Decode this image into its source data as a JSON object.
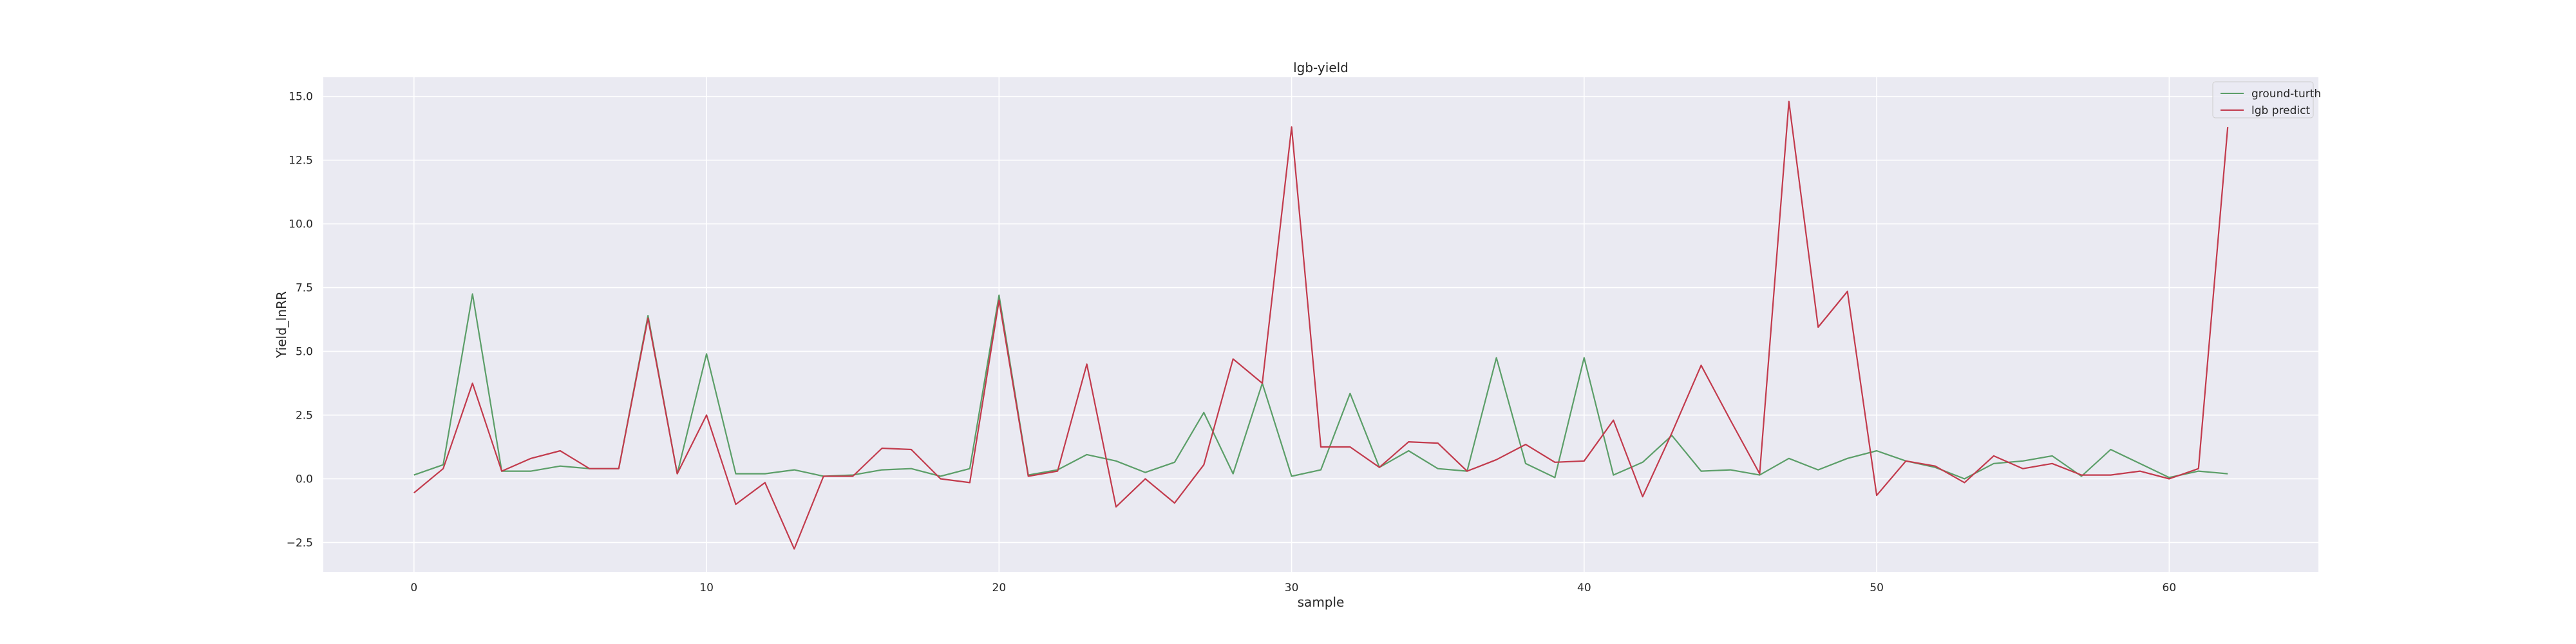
{
  "chart_data": {
    "type": "line",
    "title": "lgb-yield",
    "xlabel": "sample",
    "ylabel": "Yield_lnRR",
    "xlim": [
      -3.1,
      65.1
    ],
    "ylim": [
      -3.65,
      15.75
    ],
    "x_ticks": [
      0,
      10,
      20,
      30,
      40,
      50,
      60
    ],
    "x_tick_labels": [
      "0",
      "10",
      "20",
      "30",
      "40",
      "50",
      "60"
    ],
    "y_ticks": [
      -2.5,
      0,
      2.5,
      5,
      7.5,
      10,
      12.5,
      15
    ],
    "y_tick_labels": [
      "−2.5",
      "0.0",
      "2.5",
      "5.0",
      "7.5",
      "10.0",
      "12.5",
      "15.0"
    ],
    "grid": true,
    "legend_position": "top-right",
    "x": [
      0,
      1,
      2,
      3,
      4,
      5,
      6,
      7,
      8,
      9,
      10,
      11,
      12,
      13,
      14,
      15,
      16,
      17,
      18,
      19,
      20,
      21,
      22,
      23,
      24,
      25,
      26,
      27,
      28,
      29,
      30,
      31,
      32,
      33,
      34,
      35,
      36,
      37,
      38,
      39,
      40,
      41,
      42,
      43,
      44,
      45,
      46,
      47,
      48,
      49,
      50,
      51,
      52,
      53,
      54,
      55,
      56,
      57,
      58,
      59,
      60,
      61,
      62
    ],
    "series": [
      {
        "name": "ground-turth",
        "color": "#5b9e68",
        "values": [
          0.15,
          0.55,
          7.25,
          0.3,
          0.3,
          0.5,
          0.4,
          0.4,
          6.4,
          0.2,
          4.9,
          0.2,
          0.2,
          0.35,
          0.1,
          0.15,
          0.35,
          0.4,
          0.1,
          0.4,
          7.2,
          0.15,
          0.35,
          0.95,
          0.7,
          0.25,
          0.65,
          2.6,
          0.2,
          3.75,
          0.1,
          0.35,
          3.35,
          0.45,
          1.1,
          0.4,
          0.3,
          4.75,
          0.6,
          0.05,
          4.75,
          0.15,
          0.65,
          1.7,
          0.3,
          0.35,
          0.15,
          0.8,
          0.35,
          0.8,
          1.1,
          0.7,
          0.45,
          0.0,
          0.6,
          0.7,
          0.9,
          0.1,
          1.15,
          0.6,
          0.05,
          0.3,
          0.2
        ]
      },
      {
        "name": "lgb predict",
        "color": "#c23a4c",
        "values": [
          -0.55,
          0.4,
          3.75,
          0.3,
          0.8,
          1.1,
          0.4,
          0.4,
          6.3,
          0.2,
          2.5,
          -1.0,
          -0.15,
          -2.75,
          0.1,
          0.1,
          1.2,
          1.15,
          0.0,
          -0.15,
          7.0,
          0.1,
          0.3,
          4.5,
          -1.1,
          0.0,
          -0.95,
          0.55,
          4.7,
          3.75,
          13.8,
          1.25,
          1.25,
          0.45,
          1.45,
          1.4,
          0.3,
          0.75,
          1.35,
          0.65,
          0.7,
          2.3,
          -0.7,
          1.8,
          4.45,
          2.3,
          0.2,
          14.8,
          5.95,
          7.35,
          -0.65,
          0.7,
          0.5,
          -0.15,
          0.9,
          0.4,
          0.6,
          0.15,
          0.15,
          0.3,
          0.0,
          0.4,
          13.8
        ]
      }
    ]
  }
}
